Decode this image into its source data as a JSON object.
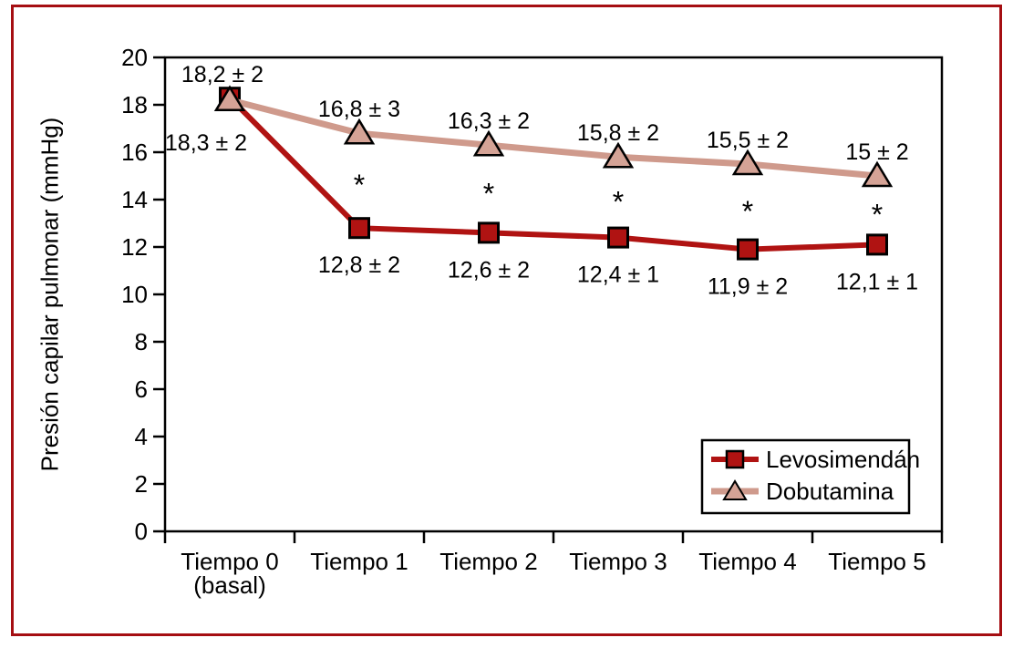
{
  "figure": {
    "border_color": "#a50e12",
    "background_color": "#ffffff"
  },
  "chart_data": {
    "type": "line",
    "title": "",
    "xlabel": "",
    "ylabel": "Presión capilar pulmonar (mmHg)",
    "ylim": [
      0,
      20
    ],
    "ytick_step": 2,
    "grid": false,
    "categories": [
      [
        "Tiempo 0",
        "(basal)"
      ],
      [
        "Tiempo 1"
      ],
      [
        "Tiempo 2"
      ],
      [
        "Tiempo 3"
      ],
      [
        "Tiempo 4"
      ],
      [
        "Tiempo 5"
      ]
    ],
    "series": [
      {
        "name": "Levosimendán",
        "values": [
          18.3,
          12.8,
          12.6,
          12.4,
          11.9,
          12.1
        ],
        "point_labels": [
          "18,3 ± 2",
          "12,8 ± 2",
          "12,6 ± 2",
          "12,4 ± 1",
          "11,9 ± 2",
          "12,1 ± 1"
        ],
        "color": "#b01312",
        "marker": "square",
        "marker_fill": "#b01312",
        "marker_stroke": "#000000",
        "label_placement": "below",
        "label_offset_overrides": {
          "0": {
            "dx": -26,
            "dy": 58
          }
        }
      },
      {
        "name": "Dobutamina",
        "values": [
          18.2,
          16.8,
          16.3,
          15.8,
          15.5,
          15
        ],
        "point_labels": [
          "18,2 ± 2",
          "16,8 ± 3",
          "16,3 ± 2",
          "15,8 ± 2",
          "15,5 ± 2",
          "15 ± 2"
        ],
        "color": "#cf9a8c",
        "marker": "triangle",
        "marker_fill": "#d5a396",
        "marker_stroke": "#000000",
        "label_placement": "above",
        "label_offset_overrides": {
          "0": {
            "dx": -8,
            "dy": -20
          }
        }
      }
    ],
    "significance_marker": "*",
    "significance_categories": [
      1,
      2,
      3,
      4,
      5
    ],
    "legend": {
      "position": "lower right",
      "entries": [
        "Levosimendán",
        "Dobutamina"
      ]
    }
  }
}
